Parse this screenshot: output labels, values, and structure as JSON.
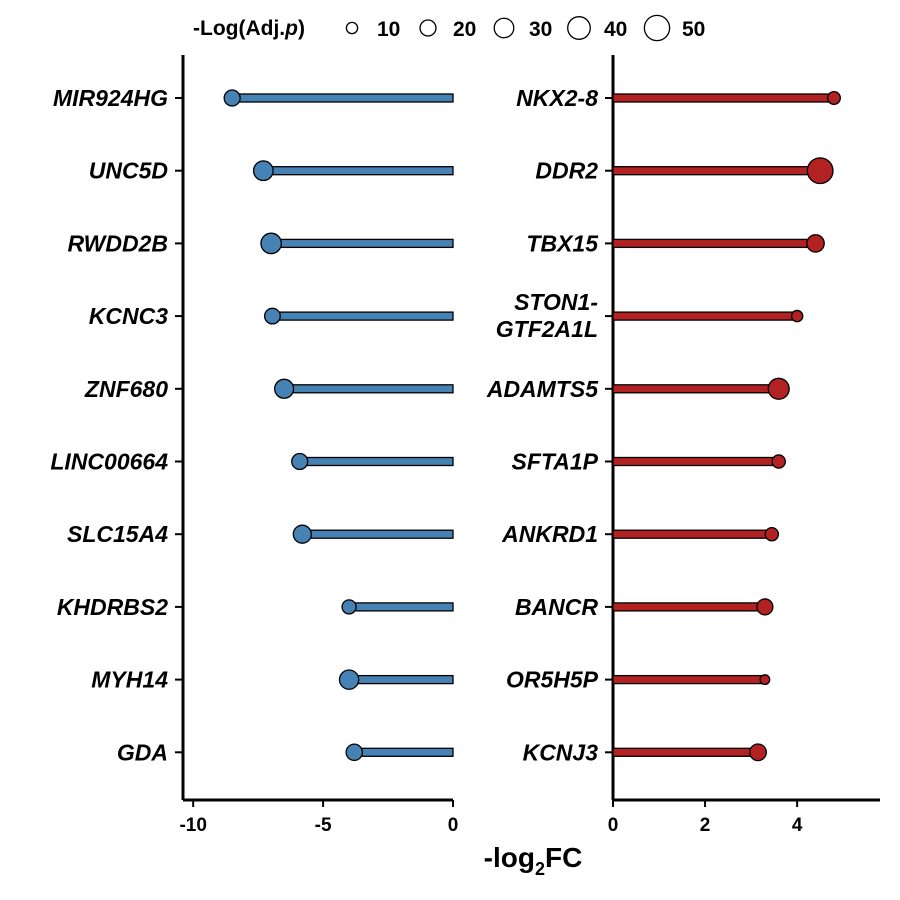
{
  "chart_data": {
    "type": "lollipop",
    "xlabel": {
      "main": "-log",
      "sub": "2",
      "tail": "FC"
    },
    "legend": {
      "title_prefix": "-Log(Adj.",
      "title_italic": "p",
      "title_suffix": ")",
      "sizes": [
        "10",
        "20",
        "30",
        "40",
        "50"
      ],
      "placement": "top"
    },
    "size_legend_values": [
      10,
      20,
      30,
      40,
      50
    ],
    "panels": [
      {
        "name": "down",
        "color": "#4682B4",
        "xlim": [
          -10.2,
          0
        ],
        "ticks": [
          "-10",
          "-5",
          "0"
        ],
        "tick_values": [
          -10,
          -5,
          0
        ],
        "points": [
          {
            "gene": "MIR924HG",
            "value": -8.5,
            "neglog_padj": 22
          },
          {
            "gene": "UNC5D",
            "value": -7.3,
            "neglog_padj": 33
          },
          {
            "gene": "RWDD2B",
            "value": -7.0,
            "neglog_padj": 36
          },
          {
            "gene": "KCNC3",
            "value": -6.95,
            "neglog_padj": 21
          },
          {
            "gene": "ZNF680",
            "value": -6.5,
            "neglog_padj": 31
          },
          {
            "gene": "LINC00664",
            "value": -5.9,
            "neglog_padj": 22
          },
          {
            "gene": "SLC15A4",
            "value": -5.8,
            "neglog_padj": 28
          },
          {
            "gene": "KHDRBS2",
            "value": -4.0,
            "neglog_padj": 17
          },
          {
            "gene": "MYH14",
            "value": -4.0,
            "neglog_padj": 32
          },
          {
            "gene": "GDA",
            "value": -3.8,
            "neglog_padj": 23
          }
        ]
      },
      {
        "name": "up",
        "color": "#B22222",
        "xlim": [
          0,
          5.8
        ],
        "ticks": [
          "0",
          "2",
          "4"
        ],
        "tick_values": [
          0,
          2,
          4
        ],
        "points": [
          {
            "gene": "NKX2-8",
            "value": 4.8,
            "neglog_padj": 14
          },
          {
            "gene": "DDR2",
            "value": 4.5,
            "neglog_padj": 57
          },
          {
            "gene": "TBX15",
            "value": 4.4,
            "neglog_padj": 26
          },
          {
            "gene": "STON1-GTF2A1L",
            "label_lines": [
              "STON1-",
              "GTF2A1L"
            ],
            "value": 4.0,
            "neglog_padj": 11
          },
          {
            "gene": "ADAMTS5",
            "value": 3.6,
            "neglog_padj": 38
          },
          {
            "gene": "SFTA1P",
            "value": 3.6,
            "neglog_padj": 15
          },
          {
            "gene": "ANKRD1",
            "value": 3.45,
            "neglog_padj": 15
          },
          {
            "gene": "BANCR",
            "value": 3.3,
            "neglog_padj": 22
          },
          {
            "gene": "OR5H5P",
            "value": 3.3,
            "neglog_padj": 8
          },
          {
            "gene": "KCNJ3",
            "value": 3.15,
            "neglog_padj": 24
          }
        ]
      }
    ]
  }
}
